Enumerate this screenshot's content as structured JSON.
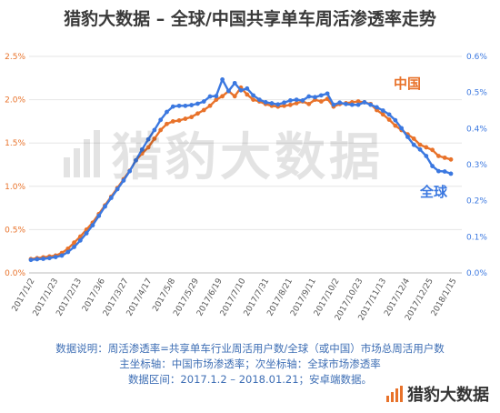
{
  "chart_data": {
    "type": "line",
    "title": "猎豹大数据 – 全球/中国共享单车周活渗透率走势",
    "x_tick_labels": [
      "2017/1/2",
      "2017/1/23",
      "2017/2/13",
      "2017/3/6",
      "2017/3/27",
      "2017/4/17",
      "2017/5/8",
      "2017/5/29",
      "2017/6/19",
      "2017/7/10",
      "2017/7/31",
      "2017/8/21",
      "2017/9/11",
      "2017/10/2",
      "2017/10/23",
      "2017/11/13",
      "2017/12/4",
      "2017/12/25",
      "2018/1/15"
    ],
    "y_left": {
      "ticks": [
        "0.0%",
        "0.5%",
        "1.0%",
        "1.5%",
        "2.0%",
        "2.5%"
      ],
      "range": [
        0,
        2.5
      ],
      "color": "#e8722a"
    },
    "y_right": {
      "ticks": [
        "0.0%",
        "0.1%",
        "0.2%",
        "0.3%",
        "0.4%",
        "0.5%",
        "0.6%"
      ],
      "range": [
        0,
        0.6
      ],
      "color": "#3b78e0"
    },
    "grid": true,
    "series": [
      {
        "name": "中国",
        "axis": "left",
        "color": "#e8722a",
        "values": [
          0.16,
          0.17,
          0.18,
          0.19,
          0.2,
          0.23,
          0.28,
          0.35,
          0.42,
          0.5,
          0.58,
          0.68,
          0.78,
          0.88,
          0.98,
          1.08,
          1.18,
          1.3,
          1.38,
          1.45,
          1.55,
          1.65,
          1.72,
          1.75,
          1.76,
          1.78,
          1.8,
          1.84,
          1.88,
          1.93,
          2.0,
          2.04,
          2.1,
          2.04,
          2.14,
          2.06,
          2.0,
          1.98,
          1.95,
          1.93,
          1.92,
          1.93,
          1.94,
          1.96,
          1.98,
          1.95,
          2.0,
          1.98,
          2.01,
          1.92,
          1.95,
          1.96,
          1.97,
          1.98,
          1.97,
          1.95,
          1.88,
          1.83,
          1.77,
          1.7,
          1.65,
          1.6,
          1.55,
          1.48,
          1.45,
          1.42,
          1.35,
          1.33,
          1.31
        ]
      },
      {
        "name": "全球",
        "axis": "right",
        "color": "#3b78e0",
        "values": [
          0.036,
          0.038,
          0.039,
          0.041,
          0.044,
          0.048,
          0.058,
          0.072,
          0.09,
          0.11,
          0.132,
          0.158,
          0.184,
          0.208,
          0.232,
          0.256,
          0.282,
          0.312,
          0.342,
          0.37,
          0.396,
          0.424,
          0.446,
          0.461,
          0.463,
          0.463,
          0.465,
          0.469,
          0.475,
          0.489,
          0.49,
          0.536,
          0.504,
          0.526,
          0.506,
          0.511,
          0.492,
          0.48,
          0.473,
          0.47,
          0.467,
          0.472,
          0.478,
          0.48,
          0.478,
          0.489,
          0.487,
          0.492,
          0.497,
          0.466,
          0.472,
          0.468,
          0.466,
          0.466,
          0.473,
          0.466,
          0.459,
          0.45,
          0.439,
          0.423,
          0.401,
          0.377,
          0.355,
          0.342,
          0.324,
          0.296,
          0.282,
          0.281,
          0.275
        ]
      }
    ]
  },
  "watermark_text": "猎豹大数据",
  "notes": {
    "line1": "数据说明：周活渗透率=共享单车行业周活用户数/全球（或中国）市场总周活用户数",
    "line2": "主坐标轴：中国市场渗透率；次坐标轴：全球市场渗透率",
    "line3": "数据区间：2017.1.2 – 2018.01.21；安卓端数据。"
  },
  "brand": {
    "name": "猎豹大数据"
  }
}
